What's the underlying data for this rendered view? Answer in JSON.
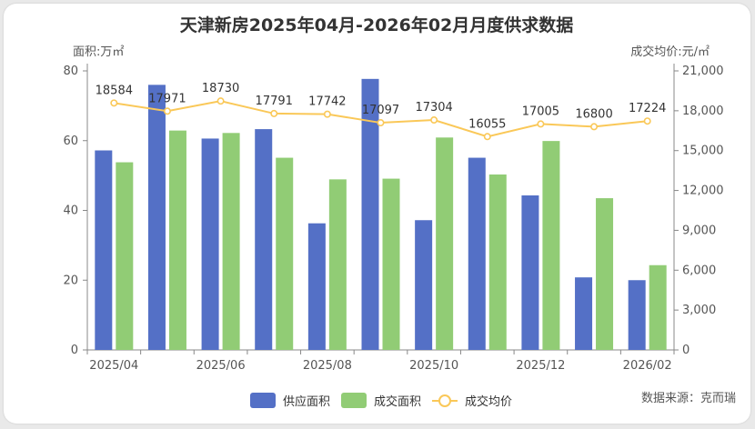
{
  "chart_data": {
    "type": "bar",
    "title": "天津新房2025年04月-2026年02月月度供求数据",
    "left_axis_label": "面积:万㎡",
    "right_axis_label": "成交均价:元/㎡",
    "categories": [
      "2025/04",
      "2025/05",
      "2025/06",
      "2025/07",
      "2025/08",
      "2025/09",
      "2025/10",
      "2025/11",
      "2025/12",
      "2026/01",
      "2026/02"
    ],
    "x_tick_labels": [
      "2025/04",
      "2025/06",
      "2025/08",
      "2025/10",
      "2025/12",
      "2026/02"
    ],
    "left_ylim": [
      0,
      80
    ],
    "left_ticks": [
      "0",
      "20",
      "40",
      "60",
      "80"
    ],
    "right_ylim": [
      0,
      21000
    ],
    "right_ticks": [
      "0",
      "3,000",
      "6,000",
      "9,000",
      "12,000",
      "15,000",
      "18,000",
      "21,000"
    ],
    "series": [
      {
        "name": "供应面积",
        "type": "bar",
        "axis": "left",
        "color": "#5470c6",
        "values": [
          57.2,
          76.0,
          60.6,
          63.3,
          36.3,
          77.7,
          37.2,
          55.1,
          44.3,
          20.8,
          20.0
        ]
      },
      {
        "name": "成交面积",
        "type": "bar",
        "axis": "left",
        "color": "#91cc75",
        "values": [
          53.8,
          62.9,
          62.2,
          55.1,
          48.9,
          49.1,
          60.9,
          50.3,
          59.9,
          43.5,
          24.3
        ]
      },
      {
        "name": "成交均价",
        "type": "line",
        "axis": "right",
        "color": "#fac858",
        "values": [
          18584,
          17971,
          18730,
          17791,
          17742,
          17097,
          17304,
          16055,
          17005,
          16800,
          17224
        ]
      }
    ],
    "legend_position": "bottom-center",
    "grid": false
  },
  "source": "数据来源：克而瑞"
}
